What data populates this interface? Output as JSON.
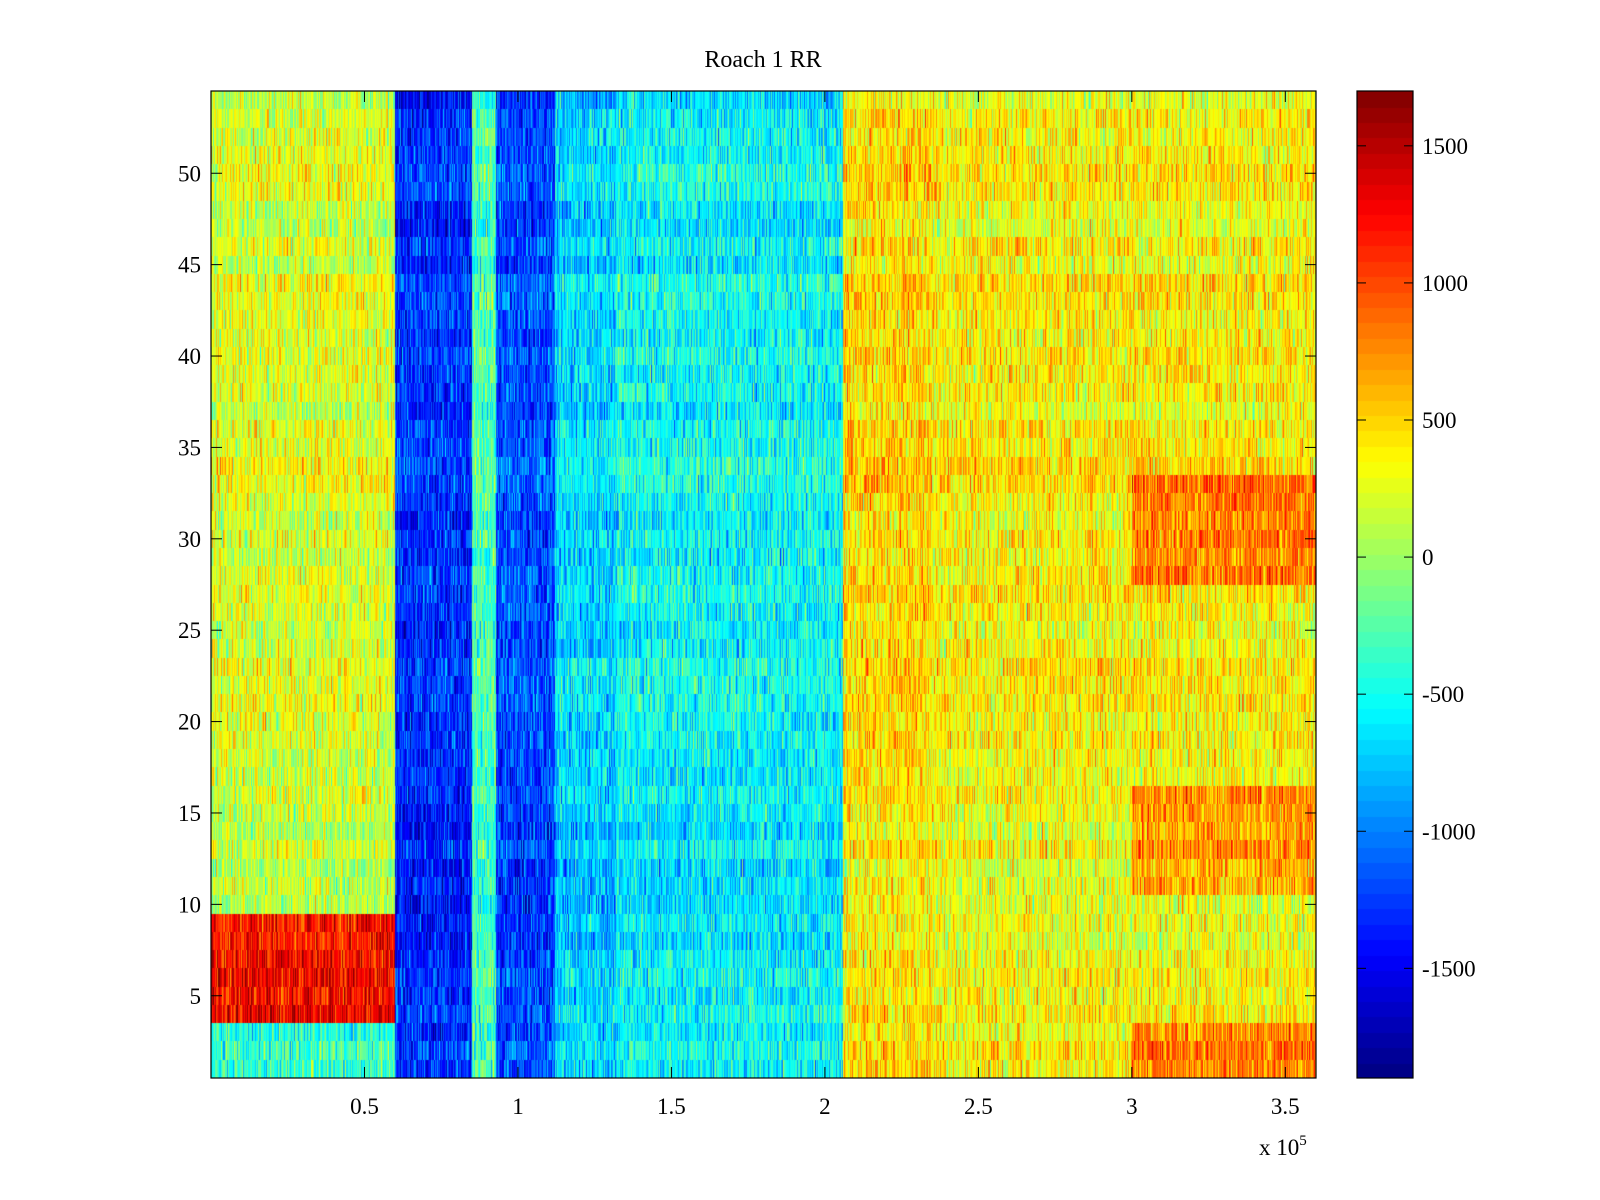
{
  "chart_data": {
    "type": "heatmap",
    "title": "Roach 1 RR",
    "xlabel": "",
    "ylabel": "",
    "x_exponent_label": "x 10",
    "x_exponent_power": "5",
    "xlim": [
      0,
      360000
    ],
    "ylim": [
      0.5,
      54.5
    ],
    "rows": 54,
    "x_ticks": [
      {
        "value": 50000,
        "label": "0.5"
      },
      {
        "value": 100000,
        "label": "1"
      },
      {
        "value": 150000,
        "label": "1.5"
      },
      {
        "value": 200000,
        "label": "2"
      },
      {
        "value": 250000,
        "label": "2.5"
      },
      {
        "value": 300000,
        "label": "3"
      },
      {
        "value": 350000,
        "label": "3.5"
      }
    ],
    "y_ticks": [
      {
        "value": 5,
        "label": "5"
      },
      {
        "value": 10,
        "label": "10"
      },
      {
        "value": 15,
        "label": "15"
      },
      {
        "value": 20,
        "label": "20"
      },
      {
        "value": 25,
        "label": "25"
      },
      {
        "value": 30,
        "label": "30"
      },
      {
        "value": 35,
        "label": "35"
      },
      {
        "value": 40,
        "label": "40"
      },
      {
        "value": 45,
        "label": "45"
      },
      {
        "value": 50,
        "label": "50"
      }
    ],
    "colorbar": {
      "colormap": "jet",
      "range": [
        -1900,
        1700
      ],
      "ticks": [
        {
          "value": 1500,
          "label": "1500"
        },
        {
          "value": 1000,
          "label": "1000"
        },
        {
          "value": 500,
          "label": "500"
        },
        {
          "value": 0,
          "label": "0"
        },
        {
          "value": -500,
          "label": "-500"
        },
        {
          "value": -1000,
          "label": "-1000"
        },
        {
          "value": -1500,
          "label": "-1500"
        }
      ]
    },
    "segments": [
      {
        "x_start": 0,
        "x_end": 60000,
        "mean_value": 200,
        "description": "yellow-green"
      },
      {
        "x_start": 60000,
        "x_end": 85000,
        "mean_value": -1300,
        "description": "dark blue"
      },
      {
        "x_start": 85000,
        "x_end": 93000,
        "mean_value": -300,
        "description": "cyan"
      },
      {
        "x_start": 93000,
        "x_end": 112000,
        "mean_value": -1200,
        "description": "dark blue"
      },
      {
        "x_start": 112000,
        "x_end": 132000,
        "mean_value": -700,
        "description": "light blue"
      },
      {
        "x_start": 132000,
        "x_end": 206000,
        "mean_value": -550,
        "description": "cyan"
      },
      {
        "x_start": 206000,
        "x_end": 235000,
        "mean_value": 450,
        "description": "yellow-orange"
      },
      {
        "x_start": 235000,
        "x_end": 360000,
        "mean_value": 350,
        "description": "yellow-orange"
      }
    ],
    "row_features": [
      {
        "rows": [
          4,
          9
        ],
        "x_start": 0,
        "x_end": 60000,
        "mean_value": 1250,
        "description": "red band"
      },
      {
        "rows": [
          1,
          3
        ],
        "x_start": 0,
        "x_end": 60000,
        "mean_value": -400,
        "description": "cyan band"
      },
      {
        "rows": [
          1,
          3
        ],
        "x_start": 300000,
        "x_end": 360000,
        "mean_value": 800,
        "description": "orange band"
      },
      {
        "rows": [
          28,
          33
        ],
        "x_start": 300000,
        "x_end": 360000,
        "mean_value": 800,
        "description": "orange band"
      },
      {
        "rows": [
          11,
          16
        ],
        "x_start": 300000,
        "x_end": 360000,
        "mean_value": 750,
        "description": "orange band"
      }
    ]
  }
}
